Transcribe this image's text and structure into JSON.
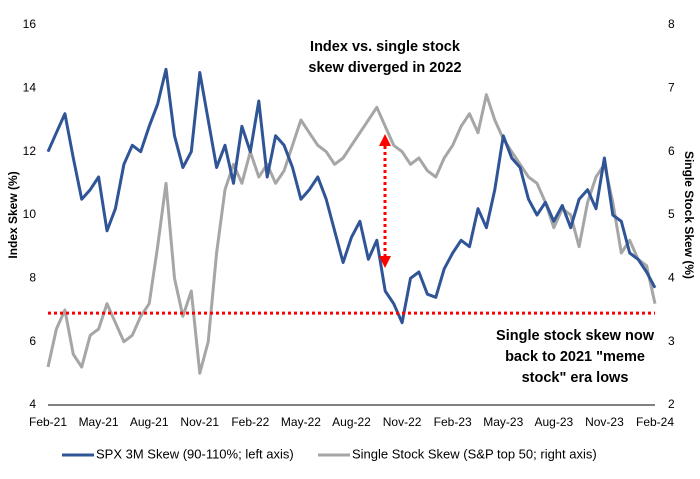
{
  "chart_data": {
    "type": "line",
    "y_label": "Index Skew (%)",
    "y2_label": "Single Stock Skew (%)",
    "categories": [
      "Feb-21",
      null,
      null,
      null,
      null,
      null,
      "May-21",
      null,
      null,
      null,
      null,
      null,
      "Aug-21",
      null,
      null,
      null,
      null,
      null,
      "Nov-21",
      null,
      null,
      null,
      null,
      null,
      "Feb-22",
      null,
      null,
      null,
      null,
      null,
      "May-22",
      null,
      null,
      null,
      null,
      null,
      "Aug-22",
      null,
      null,
      null,
      null,
      null,
      "Nov-22",
      null,
      null,
      null,
      null,
      null,
      "Feb-23",
      null,
      null,
      null,
      null,
      null,
      "May-23",
      null,
      null,
      null,
      null,
      null,
      "Aug-23",
      null,
      null,
      null,
      null,
      null,
      "Nov-23",
      null,
      null,
      null,
      null,
      null,
      "Feb-24"
    ],
    "series": [
      {
        "name": "SPX 3M Skew (90-110%; left axis)",
        "color": "#2f5597",
        "axis": "y",
        "values": [
          12.0,
          12.6,
          13.2,
          11.8,
          10.5,
          10.8,
          11.2,
          9.5,
          10.2,
          11.6,
          12.2,
          12.0,
          12.8,
          13.5,
          14.6,
          12.5,
          11.5,
          12.0,
          14.5,
          13.0,
          11.5,
          12.2,
          11.0,
          12.8,
          12.0,
          13.6,
          11.2,
          12.5,
          12.2,
          11.5,
          10.5,
          10.8,
          11.2,
          10.5,
          9.5,
          8.5,
          9.3,
          9.8,
          8.6,
          9.2,
          7.6,
          7.2,
          6.6,
          8.0,
          8.2,
          7.5,
          7.4,
          8.3,
          8.8,
          9.2,
          9.0,
          10.2,
          9.6,
          10.8,
          12.5,
          11.8,
          11.5,
          10.5,
          10.0,
          10.4,
          9.8,
          10.3,
          9.6,
          10.5,
          10.8,
          10.2,
          11.8,
          10.0,
          9.8,
          8.8,
          8.6,
          8.2,
          7.7
        ]
      },
      {
        "name": "Single Stock Skew (S&P top 50; right axis)",
        "color": "#a6a6a6",
        "axis": "y2",
        "values": [
          2.6,
          3.2,
          3.5,
          2.8,
          2.6,
          3.1,
          3.2,
          3.6,
          3.3,
          3.0,
          3.1,
          3.4,
          3.6,
          4.5,
          5.5,
          4.0,
          3.4,
          3.8,
          2.5,
          3.0,
          4.4,
          5.4,
          5.8,
          5.5,
          6.0,
          5.6,
          5.8,
          5.5,
          5.7,
          6.1,
          6.5,
          6.3,
          6.1,
          6.0,
          5.8,
          5.9,
          6.1,
          6.3,
          6.5,
          6.7,
          6.4,
          6.1,
          6.0,
          5.8,
          5.9,
          5.7,
          5.6,
          5.9,
          6.1,
          6.4,
          6.6,
          6.3,
          6.9,
          6.5,
          6.2,
          6.0,
          5.8,
          5.6,
          5.5,
          5.2,
          4.8,
          5.1,
          5.0,
          4.5,
          5.2,
          5.6,
          5.8,
          5.2,
          4.4,
          4.6,
          4.3,
          4.2,
          3.6
        ]
      }
    ],
    "ylim": [
      4,
      16
    ],
    "yticks": [
      4,
      6,
      8,
      10,
      12,
      14,
      16
    ],
    "y2lim": [
      2,
      8
    ],
    "y2ticks": [
      2,
      3,
      4,
      5,
      6,
      7,
      8
    ],
    "reference_line": {
      "value": 6.9,
      "color": "#ff0000"
    },
    "annotations": [
      {
        "lines": [
          "Index vs. single stock",
          "skew diverged in 2022"
        ]
      },
      {
        "lines": [
          "Single stock skew now",
          "back to 2021 \"meme",
          "stock\" era lows"
        ]
      }
    ]
  }
}
